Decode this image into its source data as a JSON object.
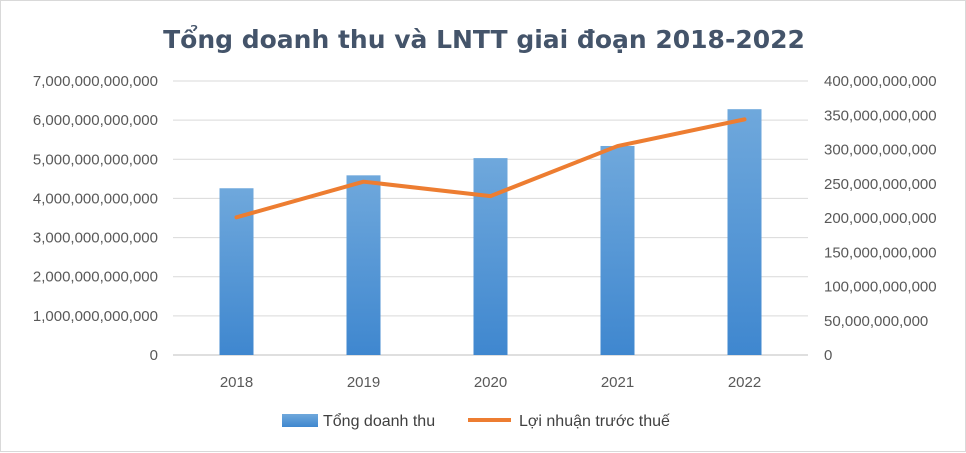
{
  "chart_data": {
    "type": "bar",
    "title": "Tổng doanh thu và LNTT giai đoạn 2018-2022",
    "categories": [
      "2018",
      "2019",
      "2020",
      "2021",
      "2022"
    ],
    "series": [
      {
        "name": "Tổng doanh thu",
        "type": "bar",
        "axis": "left",
        "color": "#5b9bd5",
        "values": [
          4260000000000,
          4590000000000,
          5030000000000,
          5340000000000,
          6280000000000
        ]
      },
      {
        "name": "Lợi nhuận trước thuế",
        "type": "line",
        "axis": "right",
        "color": "#ed7d31",
        "values": [
          201000000000,
          253000000000,
          232000000000,
          305000000000,
          344000000000
        ]
      }
    ],
    "y_left": {
      "ylim": [
        0,
        7000000000000
      ],
      "ticks": [
        "0",
        "1,000,000,000,000",
        "2,000,000,000,000",
        "3,000,000,000,000",
        "4,000,000,000,000",
        "5,000,000,000,000",
        "6,000,000,000,000",
        "7,000,000,000,000"
      ]
    },
    "y_right": {
      "ylim": [
        0,
        400000000000
      ],
      "ticks": [
        "0",
        "50,000,000,000",
        "100,000,000,000",
        "150,000,000,000",
        "200,000,000,000",
        "250,000,000,000",
        "300,000,000,000",
        "350,000,000,000",
        "400,000,000,000"
      ]
    },
    "grid": true,
    "legend": "bottom"
  }
}
